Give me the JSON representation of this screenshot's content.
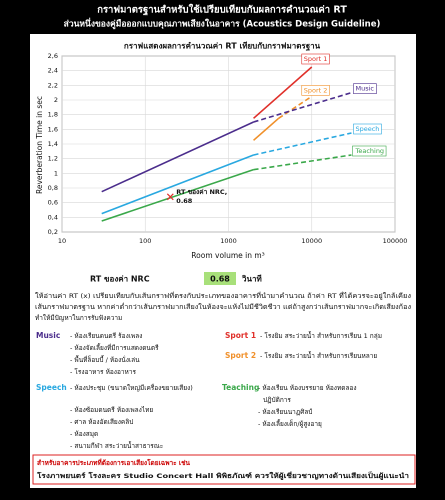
{
  "header": {
    "title": "กราฟมาตรฐานสำหรับใช้เปรียบเทียบกับผลการคำนวณค่า RT",
    "subtitle": "ส่วนหนึ่งของคู่มือออกแบบคุณภาพเสียงในอาคาร (Acoustics Design Guideline)"
  },
  "chart_data": {
    "type": "line",
    "title": "กราฟแสดงผลการคำนวณค่า RT เทียบกับกราฟมาตรฐาน",
    "x_label": "Room volume in m³",
    "y_label": "Reverberation Time in sec",
    "xscale": "log",
    "grid": true,
    "xlim": [
      10,
      100000
    ],
    "xticks": [
      10,
      100,
      1000,
      10000,
      100000
    ],
    "ylim": [
      0.2,
      2.6
    ],
    "yticks": [
      {
        "value": 0.2,
        "label": "0,2"
      },
      {
        "value": 0.4,
        "label": "0,4"
      },
      {
        "value": 0.6,
        "label": "0,6"
      },
      {
        "value": 0.8,
        "label": "0,8"
      },
      {
        "value": 1,
        "label": "1"
      },
      {
        "value": 1.2,
        "label": "1,2"
      },
      {
        "value": 1.4,
        "label": "1,4"
      },
      {
        "value": 1.6,
        "label": "1,6"
      },
      {
        "value": 1.8,
        "label": "1,8"
      },
      {
        "value": 2,
        "label": "2"
      },
      {
        "value": 2.2,
        "label": "2,2"
      },
      {
        "value": 2.4,
        "label": "2,4"
      },
      {
        "value": 2.6,
        "label": "2,6"
      }
    ],
    "series": [
      {
        "name": "Sport 1",
        "color": "#e0302a",
        "x": [
          2000,
          10000
        ],
        "values": [
          1.75,
          2.45
        ],
        "styles": [
          "solid"
        ]
      },
      {
        "name": "Sport 2",
        "color": "#f0902a",
        "x": [
          2000,
          4000,
          10000
        ],
        "values": [
          1.45,
          1.75,
          2.05
        ],
        "styles": [
          "solid",
          "dashed"
        ]
      },
      {
        "name": "Music",
        "color": "#4b2d8c",
        "x": [
          30,
          2000,
          30000
        ],
        "values": [
          0.75,
          1.7,
          2.1
        ],
        "styles": [
          "solid",
          "dashed"
        ]
      },
      {
        "name": "Speech",
        "color": "#29a8e0",
        "x": [
          30,
          2000,
          30000
        ],
        "values": [
          0.45,
          1.25,
          1.55
        ],
        "styles": [
          "solid",
          "dashed"
        ]
      },
      {
        "name": "Teaching",
        "color": "#3aa84a",
        "x": [
          30,
          2000,
          30000
        ],
        "values": [
          0.35,
          1.05,
          1.25
        ],
        "styles": [
          "solid",
          "dashed"
        ]
      }
    ],
    "point": {
      "label": "RT ของค่า NRC,",
      "x": [
        200
      ],
      "values": [
        0.68
      ],
      "color": "#e0302a"
    }
  },
  "result": {
    "label": "RT ของค่า NRC",
    "value": "0.68",
    "unit": "วินาที"
  },
  "paragraph": [
    "ให้อ่านค่า RT (x) เปรียบเทียบกับเส้นกราฟที่ตรงกับประเภทของอาคารที่นำมาคำนวณ ถ้าค่า RT ที่ได้ควรจะอยู่ใกล้เคียง",
    "เส้นกราฟมาตรฐาน หากค่าต่ำกว่าเส้นกราฟมากเสียงในห้องจะแห้งไม่มีชีวิตชีวา แต่ถ้าสูงกว่าเส้นกราฟมากจะเกิดเสียงก้อง",
    "ทำให้มีปัญหาในการรับฟังความ"
  ],
  "groups": [
    {
      "name": "Music",
      "items": [
        "- ห้องเรียนดนตรี ร้องเพลง",
        "- ห้องจัดเลี้ยงที่มีการแสดงดนตรี",
        "- พื้นที่ล็อบบี้ / ห้องนั่งเล่น",
        "- โรงอาหาร ห้องอาหาร"
      ]
    },
    {
      "name": "Sport 1",
      "items": [
        "- โรงยิม สระว่ายน้ำ สำหรับการเรียน 1 กลุ่ม"
      ]
    },
    {
      "name": "Sport 2",
      "items": [
        "- โรงยิม สระว่ายน้ำ สำหรับการเรียนหลาย"
      ]
    },
    {
      "name": "Speech",
      "items": [
        "- ห้องประชุม (ขนาดใหญ่มีเครื่องขยายเสียง)",
        "- ห้องซ้อมดนตรี ห้องเพลงไทย",
        "- ศาล ห้องอัดเสียงคลิป",
        "- ห้องสมุด",
        "- สนามกีฬา สระว่ายน้ำสาธารณะ"
      ]
    },
    {
      "name": "Teaching",
      "items": [
        "- ห้องเรียน ห้องบรรยาย ห้องทดลอง",
        "ปฏิบัติการ",
        "- ห้องเรียนนาฏศิลป์",
        "- ห้องเลี้ยงเด็ก/ผู้สูงอายุ"
      ]
    }
  ],
  "note": [
    "สำหรับอาคารประเภทที่ต้องการเอาเสียงโดยเฉพาะ เช่น",
    "โรงภาพยนตร์ โรงละคร Studio Concert Hall พิพิธภัณฑ์ ควรให้ผู้เชี่ยวชาญทางด้านเสียงเป็นผู้แนะนำ"
  ]
}
